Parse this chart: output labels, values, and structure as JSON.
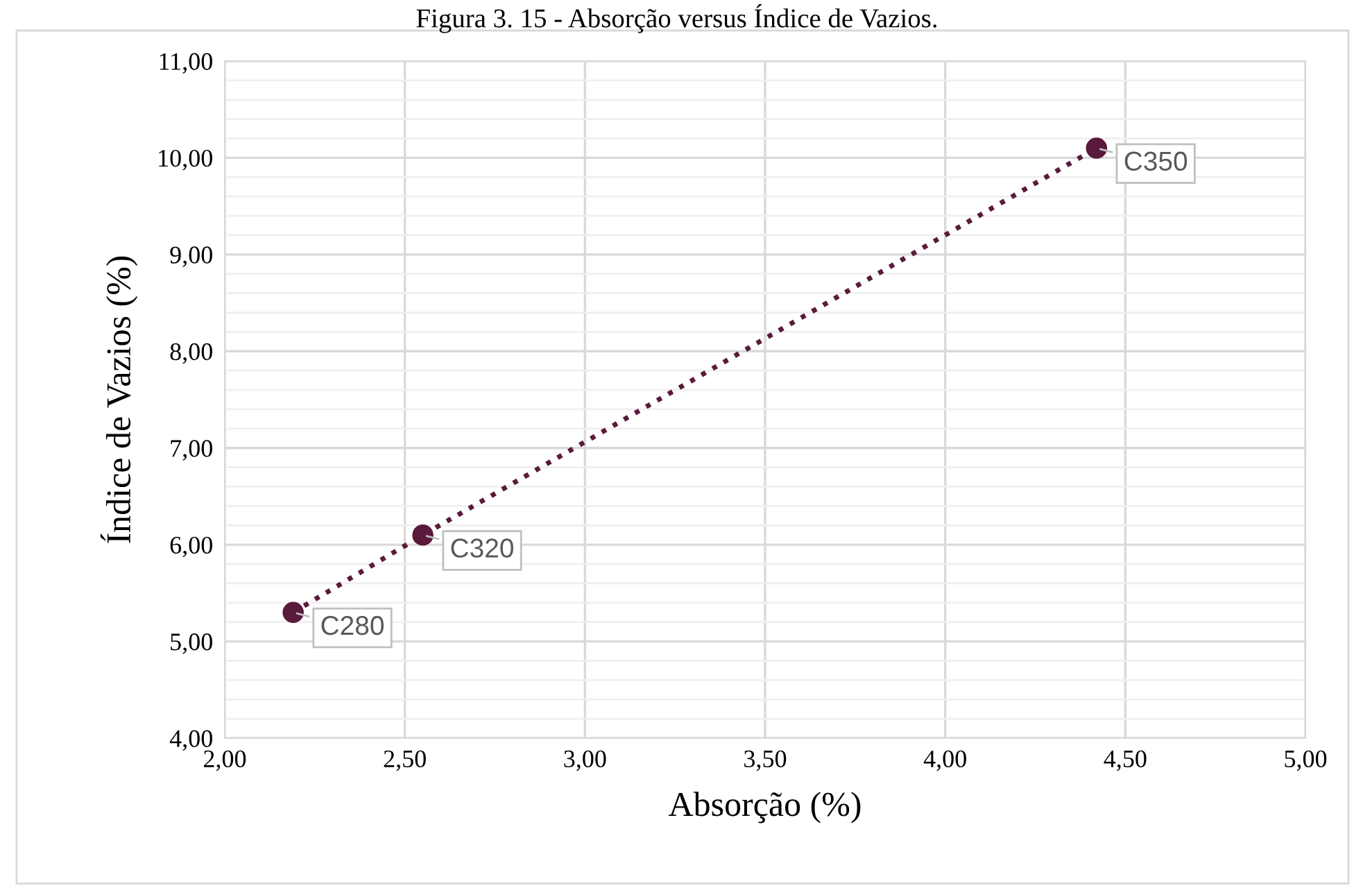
{
  "chart_data": {
    "type": "line",
    "title": "Figura 3. 15 - Absorção versus Índice de Vazios.",
    "xlabel": "Absorção (%)",
    "ylabel": "Índice de Vazios (%)",
    "series": [
      {
        "color": "#5a1a3c",
        "x": [
          2.19,
          2.55,
          4.42
        ],
        "values": [
          5.3,
          6.1,
          10.1
        ]
      }
    ],
    "annotations": [
      {
        "text": "C280",
        "x": 2.19,
        "y": 5.3
      },
      {
        "text": "C320",
        "x": 2.55,
        "y": 6.1
      },
      {
        "text": "C350",
        "x": 4.42,
        "y": 10.1
      }
    ],
    "xlim": [
      2,
      5
    ],
    "xticks": [
      {
        "value": 2,
        "label": "2,00"
      },
      {
        "value": 2.5,
        "label": "2,50"
      },
      {
        "value": 3,
        "label": "3,00"
      },
      {
        "value": 3.5,
        "label": "3,50"
      },
      {
        "value": 4,
        "label": "4,00"
      },
      {
        "value": 4.5,
        "label": "4,50"
      },
      {
        "value": 5,
        "label": "5,00"
      }
    ],
    "ylim": [
      4,
      11
    ],
    "yticks": [
      {
        "value": 4,
        "label": "4,00"
      },
      {
        "value": 5,
        "label": "5,00"
      },
      {
        "value": 6,
        "label": "6,00"
      },
      {
        "value": 7,
        "label": "7,00"
      },
      {
        "value": 8,
        "label": "8,00"
      },
      {
        "value": 9,
        "label": "9,00"
      },
      {
        "value": 10,
        "label": "10,00"
      },
      {
        "value": 11,
        "label": "11,00"
      }
    ],
    "grid": true,
    "marker": "circle",
    "line_style": "dotted"
  }
}
